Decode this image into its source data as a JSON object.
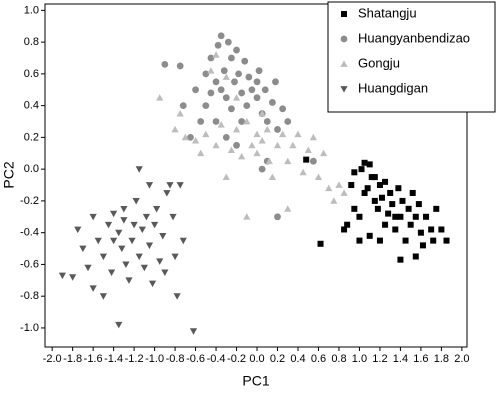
{
  "chart_data": {
    "type": "scatter",
    "x_label": "PC1",
    "y_label": "PC2",
    "xlim": [
      -2.07,
      2.05
    ],
    "ylim": [
      -1.12,
      1.04
    ],
    "xticks": [
      {
        "value": -2.0,
        "label": "-2.0"
      },
      {
        "value": -1.8,
        "label": "-1.8"
      },
      {
        "value": -1.6,
        "label": "-1.6"
      },
      {
        "value": -1.4,
        "label": "-1.4"
      },
      {
        "value": -1.2,
        "label": "-1.2"
      },
      {
        "value": -1.0,
        "label": "-1.0"
      },
      {
        "value": -0.8,
        "label": "-0.8"
      },
      {
        "value": -0.6,
        "label": "-0.6"
      },
      {
        "value": -0.4,
        "label": "-0.4"
      },
      {
        "value": -0.2,
        "label": "-0.2"
      },
      {
        "value": 0,
        "label": "0.0"
      },
      0.2,
      0.4,
      0.6,
      0.8,
      {
        "value": 1.0,
        "label": "1.0"
      },
      1.2,
      1.4,
      1.6,
      1.8,
      {
        "value": 2.0,
        "label": "2.0"
      }
    ],
    "yticks": [
      {
        "value": -1.0,
        "label": "-1.0"
      },
      {
        "value": -0.8,
        "label": "-0.8"
      },
      {
        "value": -0.6,
        "label": "-0.6"
      },
      {
        "value": -0.4,
        "label": "-0.4"
      },
      {
        "value": -0.2,
        "label": "-0.2"
      },
      {
        "value": 0,
        "label": "0.0"
      },
      0.2,
      0.4,
      0.6,
      0.8,
      {
        "value": 1.0,
        "label": "1.0"
      }
    ],
    "grid": false,
    "legend": "upper right",
    "series": [
      {
        "name": "Shatangju",
        "color": "#000000",
        "marker": "square",
        "x": [
          0.48,
          0.62,
          0.85,
          0.88,
          0.92,
          0.95,
          1.0,
          1.02,
          1.05,
          1.08,
          1.1,
          1.12,
          1.15,
          1.18,
          1.2,
          1.22,
          1.25,
          1.28,
          1.3,
          1.32,
          1.35,
          1.38,
          1.4,
          1.42,
          1.45,
          1.48,
          1.5,
          1.52,
          1.55,
          1.58,
          1.6,
          1.62,
          1.65,
          1.7,
          1.72,
          1.75,
          1.8,
          1.85,
          1.1,
          1.0,
          0.95,
          1.2,
          1.4,
          1.55,
          1.25,
          1.35,
          1.15,
          1.05
        ],
        "values": [
          0.06,
          -0.47,
          -0.38,
          -0.35,
          -0.1,
          -0.02,
          -0.3,
          0.0,
          0.04,
          -0.12,
          0.03,
          -0.05,
          -0.2,
          -0.25,
          -0.1,
          -0.18,
          -0.08,
          -0.28,
          -0.15,
          -0.22,
          -0.38,
          -0.12,
          -0.3,
          -0.2,
          -0.45,
          -0.25,
          -0.35,
          -0.15,
          -0.3,
          -0.22,
          -0.4,
          -0.48,
          -0.3,
          -0.38,
          -0.45,
          -0.25,
          -0.38,
          -0.45,
          -0.42,
          -0.45,
          -0.25,
          -0.45,
          -0.57,
          -0.55,
          -0.35,
          -0.3,
          -0.05,
          -0.15
        ]
      },
      {
        "name": "Huangyanbendizao",
        "color": "#8c8c8c",
        "marker": "circle",
        "x": [
          -0.9,
          -0.75,
          -0.72,
          -0.6,
          -0.55,
          -0.5,
          -0.45,
          -0.4,
          -0.38,
          -0.35,
          -0.32,
          -0.3,
          -0.28,
          -0.25,
          -0.22,
          -0.2,
          -0.18,
          -0.15,
          -0.12,
          -0.1,
          -0.08,
          -0.05,
          0.0,
          0.02,
          0.05,
          0.08,
          0.1,
          0.15,
          0.18,
          0.2,
          0.25,
          0.3,
          -0.5,
          -0.65,
          -0.4,
          -0.3,
          0.1,
          0.05,
          0.2,
          -0.2,
          0.55,
          -0.35,
          -0.25,
          -0.45,
          0.0,
          -0.15
        ],
        "values": [
          0.66,
          0.65,
          0.4,
          0.5,
          0.3,
          0.6,
          0.7,
          0.55,
          0.78,
          0.84,
          0.62,
          0.45,
          0.8,
          0.7,
          0.55,
          0.75,
          0.6,
          0.48,
          0.68,
          0.4,
          0.58,
          0.5,
          0.45,
          0.62,
          0.35,
          0.5,
          0.3,
          0.42,
          0.55,
          0.25,
          0.38,
          0.3,
          0.4,
          0.2,
          0.3,
          0.2,
          0.05,
          0.0,
          -0.3,
          0.15,
          0.05,
          0.5,
          0.38,
          0.48,
          0.55,
          0.3
        ]
      },
      {
        "name": "Gongju",
        "color": "#bdbdbd",
        "marker": "triangle-up",
        "x": [
          -0.95,
          -0.8,
          -0.75,
          -0.7,
          -0.6,
          -0.55,
          -0.5,
          -0.45,
          -0.4,
          -0.35,
          -0.3,
          -0.25,
          -0.2,
          -0.15,
          -0.1,
          -0.05,
          0.0,
          0.0,
          0.05,
          0.1,
          0.12,
          0.15,
          0.2,
          0.25,
          0.3,
          0.35,
          0.4,
          0.45,
          0.5,
          0.55,
          0.6,
          0.65,
          0.7,
          0.75,
          0.8,
          0.85,
          -0.3,
          -0.4,
          -0.2,
          0.3,
          0.05,
          -0.1
        ],
        "values": [
          0.45,
          0.25,
          0.35,
          0.2,
          0.18,
          0.1,
          0.22,
          0.62,
          0.15,
          0.28,
          0.58,
          0.12,
          0.25,
          0.08,
          0.3,
          0.15,
          0.22,
          0.1,
          0.18,
          0.25,
          0.05,
          -0.05,
          0.15,
          0.22,
          0.05,
          0.15,
          0.22,
          -0.02,
          0.12,
          0.2,
          -0.05,
          0.1,
          -0.12,
          -0.2,
          -0.1,
          -0.15,
          -0.05,
          0.72,
          0.45,
          -0.25,
          0.35,
          -0.3
        ]
      },
      {
        "name": "Huangdigan",
        "color": "#595959",
        "marker": "triangle-down",
        "x": [
          -1.9,
          -1.8,
          -1.75,
          -1.7,
          -1.65,
          -1.6,
          -1.55,
          -1.5,
          -1.45,
          -1.42,
          -1.4,
          -1.35,
          -1.32,
          -1.3,
          -1.28,
          -1.25,
          -1.22,
          -1.2,
          -1.18,
          -1.15,
          -1.12,
          -1.1,
          -1.08,
          -1.05,
          -1.02,
          -1.0,
          -0.98,
          -0.95,
          -0.92,
          -0.9,
          -0.88,
          -0.85,
          -0.82,
          -0.8,
          -0.78,
          -0.75,
          -0.72,
          -1.15,
          -1.5,
          -1.35,
          -0.62,
          -1.05,
          -1.3,
          -1.6,
          -1.4
        ],
        "values": [
          -0.67,
          -0.68,
          -0.38,
          -0.5,
          -0.62,
          -0.3,
          -0.45,
          -0.55,
          -0.35,
          -0.65,
          -0.28,
          -0.4,
          -0.5,
          -0.32,
          -0.6,
          -0.7,
          -0.45,
          -0.35,
          -0.2,
          -0.55,
          -0.38,
          -0.62,
          -0.3,
          -0.48,
          -0.72,
          -0.35,
          -0.25,
          -0.58,
          -0.42,
          -0.65,
          -0.15,
          -0.1,
          -0.3,
          -0.55,
          -0.8,
          -0.1,
          -0.45,
          0.0,
          -0.8,
          -0.98,
          -1.02,
          -0.1,
          -0.25,
          -0.75,
          -0.45
        ]
      }
    ]
  }
}
